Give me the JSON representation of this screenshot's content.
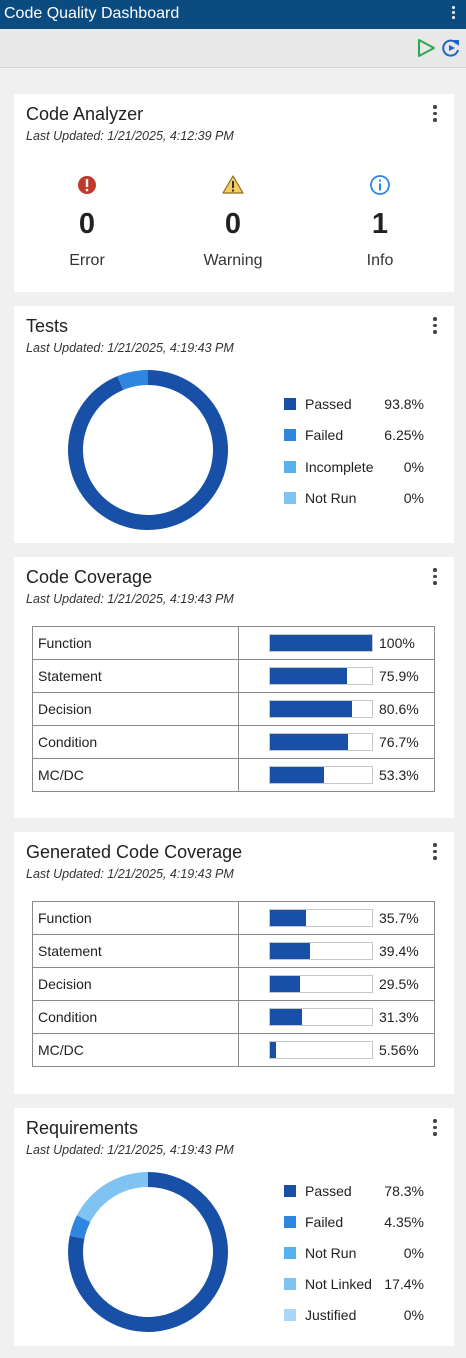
{
  "app": {
    "title": "Code Quality Dashboard"
  },
  "toolbar": {
    "run_icon": "play-icon",
    "refresh_icon": "refresh-icon"
  },
  "colors": {
    "primary": "#1750a6",
    "failed": "#2f86de",
    "incomplete": "#57b1f0",
    "not_run": "#7ec3f2",
    "justified": "#a9d7f7",
    "error": "#c0392b",
    "warning": "#e8b84a",
    "info": "#2f86de"
  },
  "code_analyzer": {
    "title": "Code Analyzer",
    "updated": "Last Updated: 1/21/2025, 4:12:39 PM",
    "items": [
      {
        "icon": "error-icon",
        "count": "0",
        "label": "Error"
      },
      {
        "icon": "warning-icon",
        "count": "0",
        "label": "Warning"
      },
      {
        "icon": "info-icon",
        "count": "1",
        "label": "Info"
      }
    ]
  },
  "tests": {
    "title": "Tests",
    "updated": "Last Updated: 1/21/2025, 4:19:43 PM",
    "legend": [
      {
        "label": "Passed",
        "value": "93.8%"
      },
      {
        "label": "Failed",
        "value": "6.25%"
      },
      {
        "label": "Incomplete",
        "value": "0%"
      },
      {
        "label": "Not Run",
        "value": "0%"
      }
    ]
  },
  "code_coverage": {
    "title": "Code Coverage",
    "updated": "Last Updated: 1/21/2025, 4:19:43 PM",
    "rows": [
      {
        "name": "Function",
        "pct": "100%"
      },
      {
        "name": "Statement",
        "pct": "75.9%"
      },
      {
        "name": "Decision",
        "pct": "80.6%"
      },
      {
        "name": "Condition",
        "pct": "76.7%"
      },
      {
        "name": "MC/DC",
        "pct": "53.3%"
      }
    ]
  },
  "generated_coverage": {
    "title": "Generated Code Coverage",
    "updated": "Last Updated: 1/21/2025, 4:19:43 PM",
    "rows": [
      {
        "name": "Function",
        "pct": "35.7%"
      },
      {
        "name": "Statement",
        "pct": "39.4%"
      },
      {
        "name": "Decision",
        "pct": "29.5%"
      },
      {
        "name": "Condition",
        "pct": "31.3%"
      },
      {
        "name": "MC/DC",
        "pct": "5.56%"
      }
    ]
  },
  "requirements": {
    "title": "Requirements",
    "updated": "Last Updated: 1/21/2025, 4:19:43 PM",
    "legend": [
      {
        "label": "Passed",
        "value": "78.3%"
      },
      {
        "label": "Failed",
        "value": "4.35%"
      },
      {
        "label": "Not Run",
        "value": "0%"
      },
      {
        "label": "Not Linked",
        "value": "17.4%"
      },
      {
        "label": "Justified",
        "value": "0%"
      }
    ]
  },
  "chart_data": [
    {
      "type": "pie",
      "categories": [
        "Passed",
        "Failed",
        "Incomplete",
        "Not Run"
      ],
      "values": [
        93.8,
        6.25,
        0,
        0
      ]
    },
    {
      "type": "bar",
      "categories": [
        "Function",
        "Statement",
        "Decision",
        "Condition",
        "MC/DC"
      ],
      "values": [
        100,
        75.9,
        80.6,
        76.7,
        53.3
      ],
      "ylim": [
        0,
        100
      ]
    },
    {
      "type": "bar",
      "categories": [
        "Function",
        "Statement",
        "Decision",
        "Condition",
        "MC/DC"
      ],
      "values": [
        35.7,
        39.4,
        29.5,
        31.3,
        5.56
      ],
      "ylim": [
        0,
        100
      ]
    },
    {
      "type": "pie",
      "categories": [
        "Passed",
        "Failed",
        "Not Run",
        "Not Linked",
        "Justified"
      ],
      "values": [
        78.3,
        4.35,
        0,
        17.4,
        0
      ]
    }
  ]
}
